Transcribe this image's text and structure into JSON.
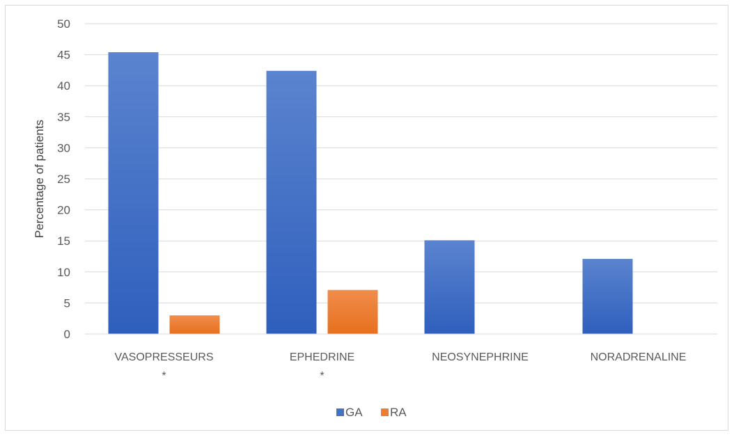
{
  "chart_data": {
    "type": "bar",
    "title": "",
    "xlabel": "",
    "ylabel": "Percentage of patients",
    "ylim": [
      0,
      50
    ],
    "yticks": [
      0,
      5,
      10,
      15,
      20,
      25,
      30,
      35,
      40,
      45,
      50
    ],
    "categories": [
      "VASOPRESSEURS",
      "EPHEDRINE",
      "NEOSYNEPHRINE",
      "NORADRENALINE"
    ],
    "category_marks": [
      "*",
      "*",
      "",
      ""
    ],
    "series": [
      {
        "name": "GA",
        "values": [
          45.4,
          42.4,
          15.1,
          12.1
        ],
        "color": "#4472c4"
      },
      {
        "name": "RA",
        "values": [
          3.0,
          7.1,
          0,
          0
        ],
        "color": "#ed7d31"
      }
    ],
    "grid": true,
    "legend": "bottom"
  }
}
